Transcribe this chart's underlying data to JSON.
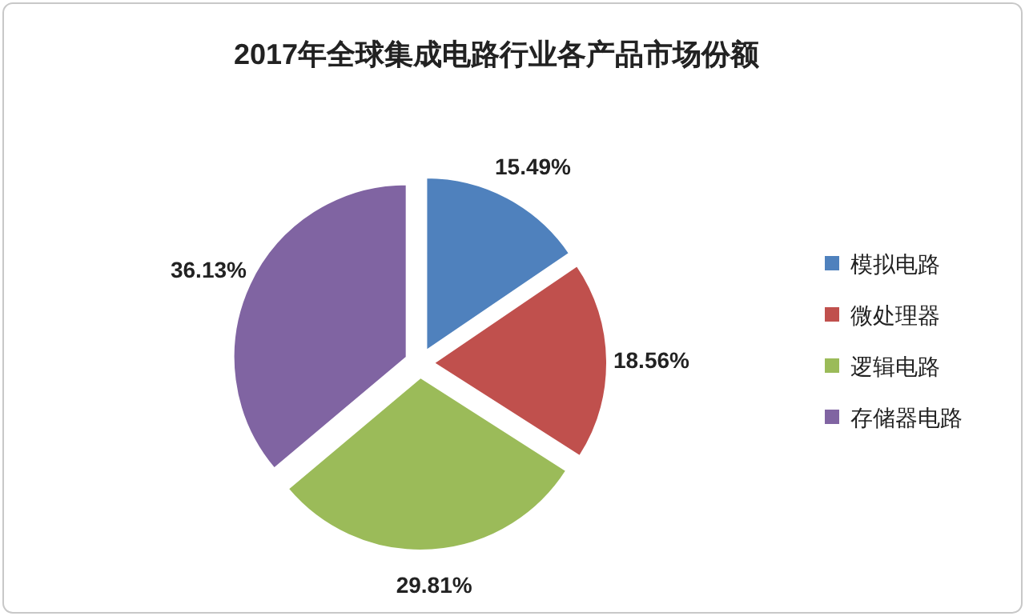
{
  "chart_data": {
    "type": "pie",
    "title": "2017年全球集成电路行业各产品市场份额",
    "categories": [
      "模拟电路",
      "微处理器",
      "逻辑电路",
      "存储器电路"
    ],
    "values": [
      15.49,
      18.56,
      29.81,
      36.13
    ],
    "colors": [
      "#4f81bd",
      "#c0504d",
      "#9bbb59",
      "#8064a2"
    ],
    "value_labels": [
      "15.49%",
      "18.56%",
      "29.81%",
      "36.13%"
    ],
    "legend": "right"
  }
}
